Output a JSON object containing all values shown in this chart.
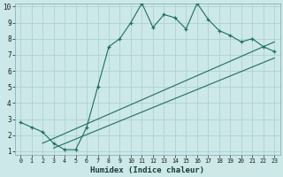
{
  "xlabel": "Humidex (Indice chaleur)",
  "bg_color": "#cce8e8",
  "grid_color": "#aacece",
  "line_color": "#1a7060",
  "xlim": [
    -0.5,
    23.5
  ],
  "ylim": [
    0.8,
    10.2
  ],
  "xticks": [
    0,
    1,
    2,
    3,
    4,
    5,
    6,
    7,
    8,
    9,
    10,
    11,
    12,
    13,
    14,
    15,
    16,
    17,
    18,
    19,
    20,
    21,
    22,
    23
  ],
  "yticks": [
    1,
    2,
    3,
    4,
    5,
    6,
    7,
    8,
    9,
    10
  ],
  "main_x": [
    0,
    1,
    2,
    3,
    4,
    5,
    6,
    7,
    8,
    9,
    10,
    11,
    12,
    13,
    14,
    15,
    16,
    17,
    18,
    19,
    20,
    21,
    22,
    23
  ],
  "main_y": [
    2.8,
    2.5,
    2.2,
    1.5,
    1.1,
    1.1,
    2.5,
    5.0,
    7.5,
    8.0,
    9.0,
    10.2,
    8.7,
    9.5,
    9.3,
    8.6,
    10.2,
    9.2,
    8.5,
    8.2,
    7.8,
    8.0,
    7.5,
    7.2
  ],
  "line2_x": [
    2,
    23
  ],
  "line2_y": [
    1.5,
    7.8
  ],
  "line3_x": [
    3,
    23
  ],
  "line3_y": [
    1.2,
    6.8
  ]
}
